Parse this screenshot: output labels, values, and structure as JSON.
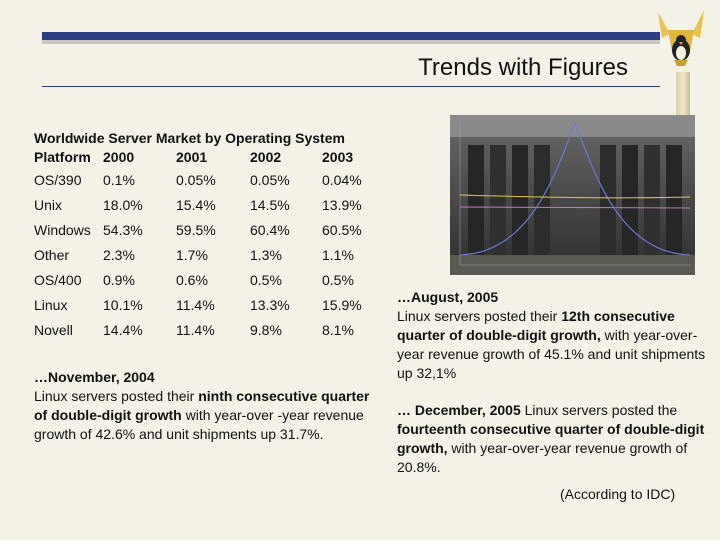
{
  "slide": {
    "title": "Trends with Figures"
  },
  "table": {
    "caption": "Worldwide Server Market by Operating System",
    "platform_label": "Platform",
    "years": [
      "2000",
      "2001",
      "2002",
      "2003"
    ],
    "rows": [
      {
        "name": "OS/390",
        "values": [
          "0.1%",
          "0.05%",
          "0.05%",
          "0.04%"
        ]
      },
      {
        "name": "Unix",
        "values": [
          "18.0%",
          "15.4%",
          "14.5%",
          "13.9%"
        ]
      },
      {
        "name": "Windows",
        "values": [
          "54.3%",
          "59.5%",
          "60.4%",
          "60.5%"
        ]
      },
      {
        "name": "Other",
        "values": [
          "2.3%",
          "1.7%",
          "1.3%",
          "1.1%"
        ]
      },
      {
        "name": "OS/400",
        "values": [
          "0.9%",
          "0.6%",
          "0.5%",
          "0.5%"
        ]
      },
      {
        "name": "Linux",
        "values": [
          "10.1%",
          "11.4%",
          "13.3%",
          "15.9%"
        ]
      },
      {
        "name": "Novell",
        "values": [
          "14.4%",
          "11.4%",
          "9.8%",
          "8.1%"
        ]
      }
    ]
  },
  "note_nov_2004": {
    "date": "…November, 2004",
    "t1": "Linux servers posted their ",
    "b1": "ninth consecutive quarter of double-digit growth",
    "t2": " with year-over -year revenue growth of 42.6% and unit shipments up 31.7%."
  },
  "note_aug_2005": {
    "date": "…August, 2005",
    "t1": "Linux servers posted their ",
    "b1": "12th consecutive quarter of double-digit growth,",
    "t2": " with year-over-year revenue growth of 45.1% and unit shipments up 32,1%"
  },
  "note_dec_2005": {
    "date": "… December, 2005",
    "t1": " Linux servers posted the ",
    "b1": "fourteenth consecutive quarter of double-digit growth,",
    "t2": " with year-over-year revenue growth of 20.8%."
  },
  "source": {
    "text": "(According to IDC)"
  },
  "colors": {
    "accent_blue": "#2b3f86",
    "background": "#f4f2e6"
  }
}
